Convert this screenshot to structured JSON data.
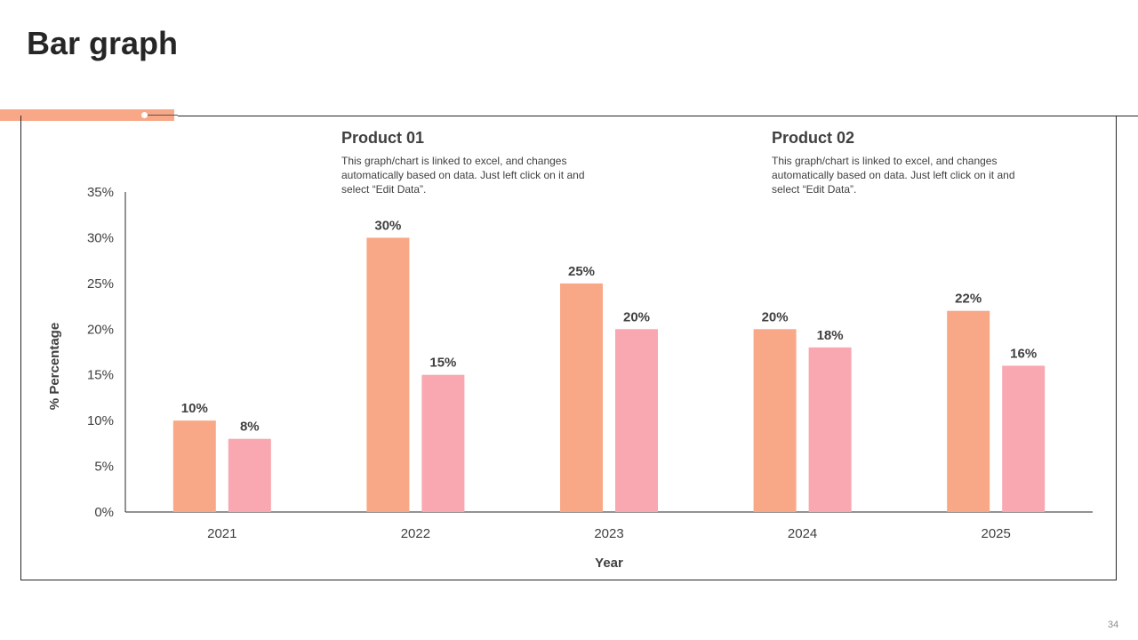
{
  "slide": {
    "title": "Bar graph",
    "page_number": "34"
  },
  "legend": [
    {
      "title": "Product 01",
      "description": "This graph/chart is linked to excel, and changes automatically based on data. Just left click on it and select “Edit Data”.",
      "color": "#f9a887"
    },
    {
      "title": "Product 02",
      "description": "This graph/chart is linked to excel, and changes automatically based on data. Just left click on it and select “Edit Data”.",
      "color": "#f9a7b1"
    }
  ],
  "chart_data": {
    "type": "bar",
    "xlabel": "Year",
    "ylabel": "% Percentage",
    "categories": [
      "2021",
      "2022",
      "2023",
      "2024",
      "2025"
    ],
    "series": [
      {
        "name": "Product 01",
        "values": [
          10,
          30,
          25,
          20,
          22
        ],
        "labels": [
          "10%",
          "30%",
          "25%",
          "20%",
          "22%"
        ],
        "color": "#f9a887"
      },
      {
        "name": "Product 02",
        "values": [
          8,
          15,
          20,
          18,
          16
        ],
        "labels": [
          "8%",
          "15%",
          "20%",
          "18%",
          "16%"
        ],
        "color": "#f9a7b1"
      }
    ],
    "ylim": [
      0,
      35
    ],
    "yticks": [
      0,
      5,
      10,
      15,
      20,
      25,
      30,
      35
    ],
    "ytick_labels": [
      "0%",
      "5%",
      "10%",
      "15%",
      "20%",
      "25%",
      "30%",
      "35%"
    ],
    "grid": false
  }
}
